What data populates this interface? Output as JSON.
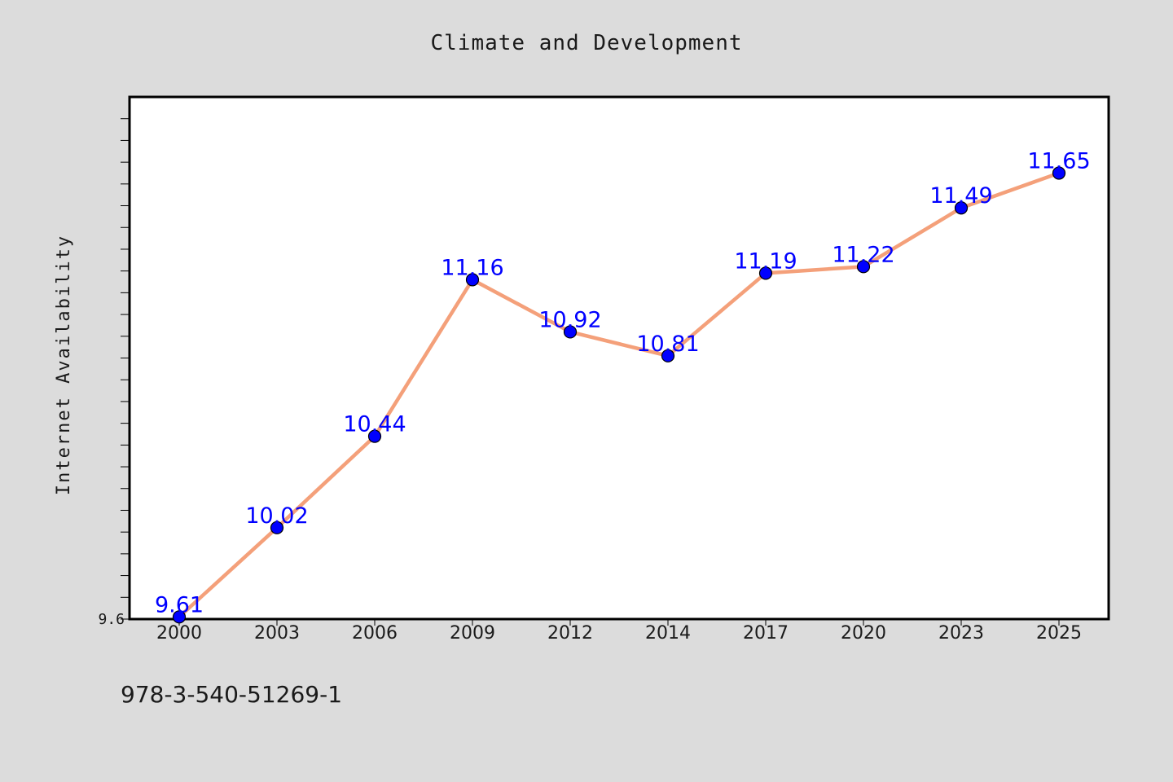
{
  "chart_data": {
    "type": "line",
    "title": "Climate and Development",
    "xlabel": "",
    "ylabel": "Internet Availability",
    "categories": [
      "2000",
      "2003",
      "2006",
      "2009",
      "2012",
      "2014",
      "2017",
      "2020",
      "2023",
      "2025"
    ],
    "values": [
      9.61,
      10.02,
      10.44,
      11.16,
      10.92,
      10.81,
      11.19,
      11.22,
      11.49,
      11.65
    ],
    "data_labels": [
      "9.61",
      "10.02",
      "10.44",
      "11.16",
      "10.92",
      "10.81",
      "11.19",
      "11.22",
      "11.49",
      "11.65"
    ],
    "ylim": [
      9.6,
      12.0
    ],
    "y_tick_labels": [
      "9.6"
    ],
    "grid": false,
    "line_color": "#f4a07a",
    "marker_color": "#0000ff",
    "label_color": "#0000ff"
  },
  "footer": {
    "isbn": "978-3-540-51269-1"
  }
}
